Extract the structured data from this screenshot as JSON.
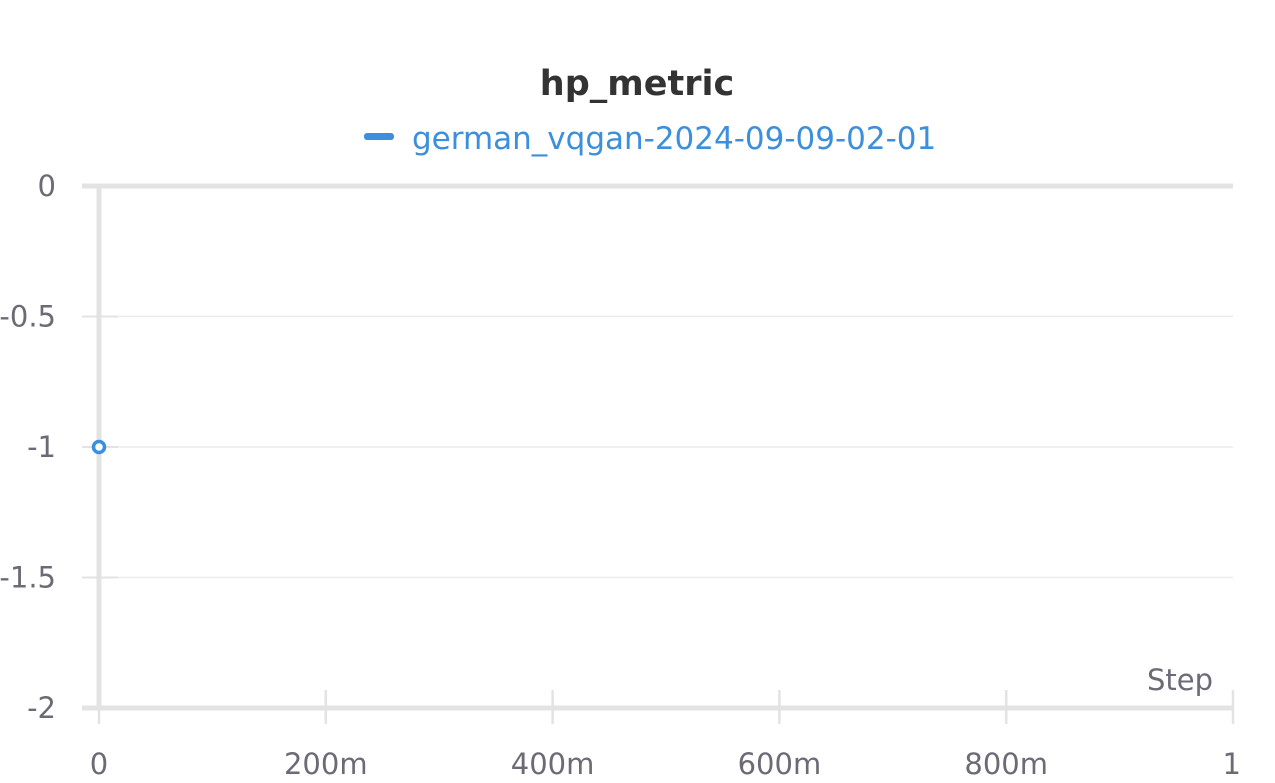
{
  "chart_data": {
    "type": "line",
    "title": "hp_metric",
    "xlabel": "Step",
    "ylabel": "",
    "xlim": [
      0,
      1
    ],
    "ylim": [
      -2,
      0
    ],
    "x_ticks": [
      "0",
      "200m",
      "400m",
      "600m",
      "800m",
      "1"
    ],
    "x_tick_values": [
      0,
      0.2,
      0.4,
      0.6,
      0.8,
      1
    ],
    "y_ticks": [
      "0",
      "-0.5",
      "-1",
      "-1.5",
      "-2"
    ],
    "y_tick_values": [
      0,
      -0.5,
      -1,
      -1.5,
      -2
    ],
    "grid": true,
    "legend_position": "top-center",
    "series": [
      {
        "name": "german_vqgan-2024-09-09-02-01",
        "color": "#3b8fdc",
        "x": [
          0
        ],
        "y": [
          -1
        ]
      }
    ]
  }
}
